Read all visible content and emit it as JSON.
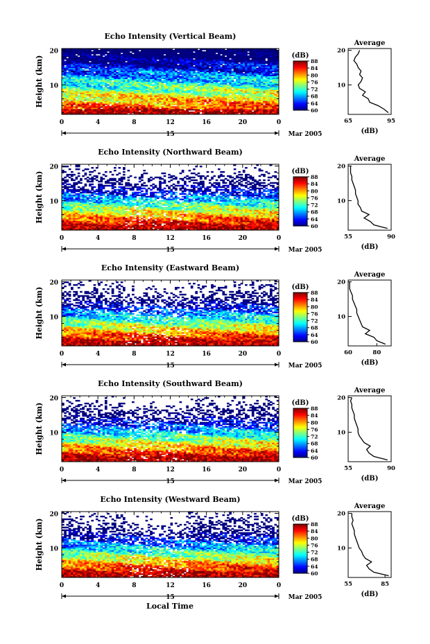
{
  "figure": {
    "xlabel": "Local Time",
    "date_label": "Mar 2005",
    "day_label": "15",
    "colorbar_unit": "(dB)",
    "average_title": "Average",
    "average_xlabel": "(dB)"
  },
  "chart_data": [
    {
      "type": "heatmap",
      "title": "Echo Intensity (Vertical Beam)",
      "xlabel": "Local Time",
      "ylabel": "Height (km)",
      "xticks": [
        "0",
        "4",
        "8",
        "12",
        "16",
        "20",
        "0"
      ],
      "yticks": [
        "10",
        "20"
      ],
      "xlim": [
        0,
        24
      ],
      "ylim": [
        1.5,
        20.5
      ],
      "colorbar": {
        "label": "(dB)",
        "ticks": [
          "60",
          "64",
          "68",
          "72",
          "76",
          "80",
          "84",
          "88"
        ],
        "range": [
          60,
          88
        ]
      },
      "average": {
        "title": "Average",
        "xlabel": "(dB)",
        "xticks": [
          "65",
          "95"
        ],
        "xlim": [
          65,
          95
        ],
        "yticks": [
          "10",
          "20"
        ],
        "height": [
          2,
          3,
          4,
          5,
          6,
          7,
          8,
          9,
          10,
          11,
          12,
          13,
          14,
          15,
          16,
          17,
          18,
          19,
          20
        ],
        "value": [
          93,
          90,
          86,
          80,
          79,
          75,
          77,
          73,
          72,
          74,
          75,
          73,
          74,
          72,
          71,
          69,
          70,
          72,
          73
        ]
      }
    },
    {
      "type": "heatmap",
      "title": "Echo Intensity (Northward Beam)",
      "xlabel": "Local Time",
      "ylabel": "Height (km)",
      "xticks": [
        "0",
        "4",
        "8",
        "12",
        "16",
        "20",
        "0"
      ],
      "yticks": [
        "10",
        "20"
      ],
      "xlim": [
        0,
        24
      ],
      "ylim": [
        1.5,
        20.5
      ],
      "colorbar": {
        "label": "(dB)",
        "ticks": [
          "60",
          "64",
          "68",
          "72",
          "76",
          "80",
          "84",
          "88"
        ],
        "range": [
          60,
          88
        ]
      },
      "average": {
        "title": "Average",
        "xlabel": "(dB)",
        "xticks": [
          "55",
          "90"
        ],
        "xlim": [
          55,
          90
        ],
        "yticks": [
          "10",
          "20"
        ],
        "height": [
          2,
          3,
          4,
          5,
          6,
          7,
          8,
          9,
          10,
          11,
          12,
          13,
          14,
          15,
          16,
          17,
          18,
          19,
          20
        ],
        "value": [
          87,
          76,
          73,
          68,
          72,
          66,
          65,
          63,
          63,
          62,
          61,
          61,
          60,
          59,
          58,
          58,
          57,
          57,
          57
        ]
      }
    },
    {
      "type": "heatmap",
      "title": "Echo Intensity (Eastward Beam)",
      "xlabel": "Local Time",
      "ylabel": "Height (km)",
      "xticks": [
        "0",
        "4",
        "8",
        "12",
        "16",
        "20",
        "0"
      ],
      "yticks": [
        "10",
        "20"
      ],
      "xlim": [
        0,
        24
      ],
      "ylim": [
        1.5,
        20.5
      ],
      "colorbar": {
        "label": "(dB)",
        "ticks": [
          "60",
          "64",
          "68",
          "72",
          "76",
          "80",
          "84",
          "88"
        ],
        "range": [
          60,
          88
        ]
      },
      "average": {
        "title": "Average",
        "xlabel": "(dB)",
        "xticks": [
          "60",
          "80"
        ],
        "xlim": [
          60,
          90
        ],
        "yticks": [
          "10",
          "20"
        ],
        "height": [
          2,
          3,
          4,
          5,
          6,
          7,
          8,
          9,
          10,
          11,
          12,
          13,
          14,
          15,
          16,
          17,
          18,
          19,
          20
        ],
        "value": [
          86,
          80,
          78,
          72,
          75,
          70,
          69,
          68,
          67,
          66,
          66,
          65,
          64,
          63,
          63,
          62,
          61,
          61,
          61
        ]
      }
    },
    {
      "type": "heatmap",
      "title": "Echo Intensity (Southward Beam)",
      "xlabel": "Local Time",
      "ylabel": "Height (km)",
      "xticks": [
        "0",
        "4",
        "8",
        "12",
        "16",
        "20",
        "0"
      ],
      "yticks": [
        "10",
        "20"
      ],
      "xlim": [
        0,
        24
      ],
      "ylim": [
        1.5,
        20.5
      ],
      "colorbar": {
        "label": "(dB)",
        "ticks": [
          "60",
          "64",
          "68",
          "72",
          "76",
          "80",
          "84",
          "88"
        ],
        "range": [
          60,
          88
        ]
      },
      "average": {
        "title": "Average",
        "xlabel": "(dB)",
        "xticks": [
          "55",
          "90"
        ],
        "xlim": [
          55,
          90
        ],
        "yticks": [
          "10",
          "20"
        ],
        "height": [
          2,
          3,
          4,
          5,
          6,
          7,
          8,
          9,
          10,
          11,
          12,
          13,
          14,
          15,
          16,
          17,
          18,
          19,
          20
        ],
        "value": [
          87,
          76,
          72,
          70,
          73,
          68,
          66,
          64,
          63,
          63,
          62,
          61,
          60,
          60,
          59,
          58,
          58,
          57,
          58
        ]
      }
    },
    {
      "type": "heatmap",
      "title": "Echo Intensity (Westward Beam)",
      "xlabel": "Local Time",
      "ylabel": "Height (km)",
      "xticks": [
        "0",
        "4",
        "8",
        "12",
        "16",
        "20",
        "0"
      ],
      "yticks": [
        "10",
        "20"
      ],
      "xlim": [
        0,
        24
      ],
      "ylim": [
        1.5,
        20.5
      ],
      "colorbar": {
        "label": "(dB)",
        "ticks": [
          "60",
          "64",
          "68",
          "72",
          "76",
          "80",
          "84",
          "88"
        ],
        "range": [
          60,
          88
        ]
      },
      "average": {
        "title": "Average",
        "xlabel": "(dB)",
        "xticks": [
          "55",
          "85"
        ],
        "xlim": [
          55,
          90
        ],
        "yticks": [
          "10",
          "20"
        ],
        "height": [
          2,
          3,
          4,
          5,
          6,
          7,
          8,
          9,
          10,
          11,
          12,
          13,
          14,
          15,
          16,
          17,
          18,
          19,
          20
        ],
        "value": [
          88,
          76,
          72,
          70,
          74,
          69,
          67,
          66,
          64,
          63,
          62,
          61,
          60,
          60,
          59,
          58,
          59,
          58,
          58
        ]
      }
    }
  ]
}
